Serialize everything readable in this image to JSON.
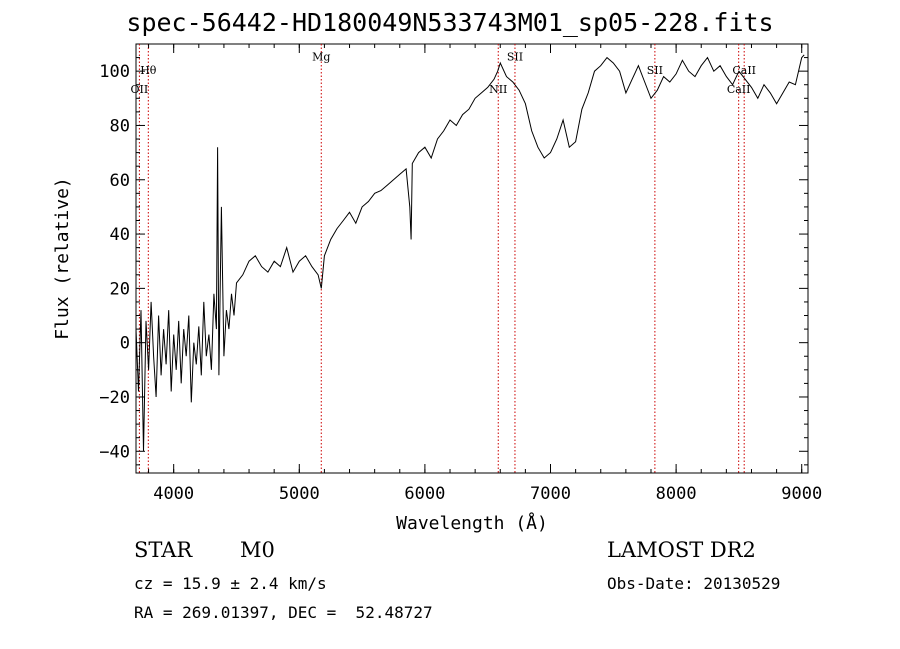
{
  "header": {
    "title": "spec-56442-HD180049N533743M01_sp05-228.fits"
  },
  "info": {
    "class": "STAR",
    "subclass": "M0",
    "survey": "LAMOST DR2",
    "cz": "cz = 15.9 ± 2.4 km/s",
    "obs_date": "Obs-Date: 20130529",
    "coords": "RA = 269.01397, DEC =  52.48727"
  },
  "chart_data": {
    "type": "line",
    "title": "spec-56442-HD180049N533743M01_sp05-228.fits",
    "xlabel": "Wavelength (Å)",
    "ylabel": "Flux (relative)",
    "xlim": [
      3700,
      9050
    ],
    "ylim": [
      -48,
      110
    ],
    "xticks": [
      4000,
      5000,
      6000,
      7000,
      8000,
      9000
    ],
    "yticks": [
      -40,
      -20,
      0,
      20,
      40,
      60,
      80,
      100
    ],
    "line_color": "#000000",
    "marker_color": "#cc0000",
    "lines": [
      {
        "label": "Hθ",
        "x": 3798,
        "label_y": 99
      },
      {
        "label": "OII",
        "x": 3727,
        "label_y": 92
      },
      {
        "label": "Mg",
        "x": 5175,
        "label_y": 104
      },
      {
        "label": "SII",
        "x": 6717,
        "label_y": 104
      },
      {
        "label": "NII",
        "x": 6584,
        "label_y": 92
      },
      {
        "label": "SII",
        "x": 7831,
        "label_y": 99
      },
      {
        "label": "CaII",
        "x": 8542,
        "label_y": 99
      },
      {
        "label": "CaII",
        "x": 8498,
        "label_y": 92
      }
    ],
    "series": [
      {
        "x": [
          3700,
          3720,
          3740,
          3760,
          3780,
          3800,
          3820,
          3840,
          3860,
          3880,
          3900,
          3920,
          3940,
          3960,
          3980,
          4000,
          4020,
          4040,
          4060,
          4080,
          4100,
          4120,
          4140,
          4160,
          4180,
          4200,
          4220,
          4240,
          4260,
          4280,
          4300,
          4320,
          4340,
          4350,
          4360,
          4380,
          4400,
          4420,
          4440,
          4460,
          4480,
          4500,
          4550,
          4600,
          4650,
          4700,
          4750,
          4800,
          4850,
          4900,
          4950,
          5000,
          5050,
          5100,
          5150,
          5175,
          5200,
          5250,
          5300,
          5350,
          5400,
          5450,
          5500,
          5550,
          5600,
          5650,
          5700,
          5750,
          5800,
          5850,
          5880,
          5890,
          5900,
          5950,
          6000,
          6050,
          6100,
          6150,
          6200,
          6250,
          6300,
          6350,
          6400,
          6450,
          6500,
          6550,
          6580,
          6600,
          6650,
          6700,
          6750,
          6800,
          6850,
          6900,
          6950,
          7000,
          7050,
          7100,
          7150,
          7200,
          7250,
          7300,
          7350,
          7400,
          7450,
          7500,
          7550,
          7600,
          7650,
          7700,
          7750,
          7800,
          7850,
          7900,
          7950,
          8000,
          8050,
          8100,
          8150,
          8200,
          8250,
          8300,
          8350,
          8400,
          8450,
          8500,
          8550,
          8600,
          8650,
          8700,
          8750,
          8800,
          8850,
          8900,
          8950,
          9000,
          9020
        ],
        "values": [
          5,
          -18,
          12,
          -40,
          8,
          -10,
          15,
          -5,
          -20,
          10,
          -12,
          5,
          -8,
          12,
          -18,
          3,
          -10,
          8,
          -15,
          5,
          -5,
          10,
          -22,
          0,
          -8,
          6,
          -12,
          15,
          -5,
          3,
          -10,
          18,
          5,
          72,
          -12,
          50,
          -5,
          12,
          5,
          18,
          10,
          22,
          25,
          30,
          32,
          28,
          26,
          30,
          28,
          35,
          26,
          30,
          32,
          28,
          25,
          20,
          32,
          38,
          42,
          45,
          48,
          44,
          50,
          52,
          55,
          56,
          58,
          60,
          62,
          64,
          50,
          38,
          66,
          70,
          72,
          68,
          75,
          78,
          82,
          80,
          84,
          86,
          90,
          92,
          94,
          97,
          100,
          103,
          98,
          96,
          93,
          88,
          78,
          72,
          68,
          70,
          75,
          82,
          72,
          74,
          86,
          92,
          100,
          102,
          105,
          103,
          100,
          92,
          97,
          102,
          96,
          90,
          93,
          98,
          96,
          99,
          104,
          100,
          98,
          102,
          105,
          100,
          102,
          98,
          95,
          100,
          97,
          94,
          90,
          95,
          92,
          88,
          92,
          96,
          95,
          105,
          106
        ]
      }
    ]
  }
}
